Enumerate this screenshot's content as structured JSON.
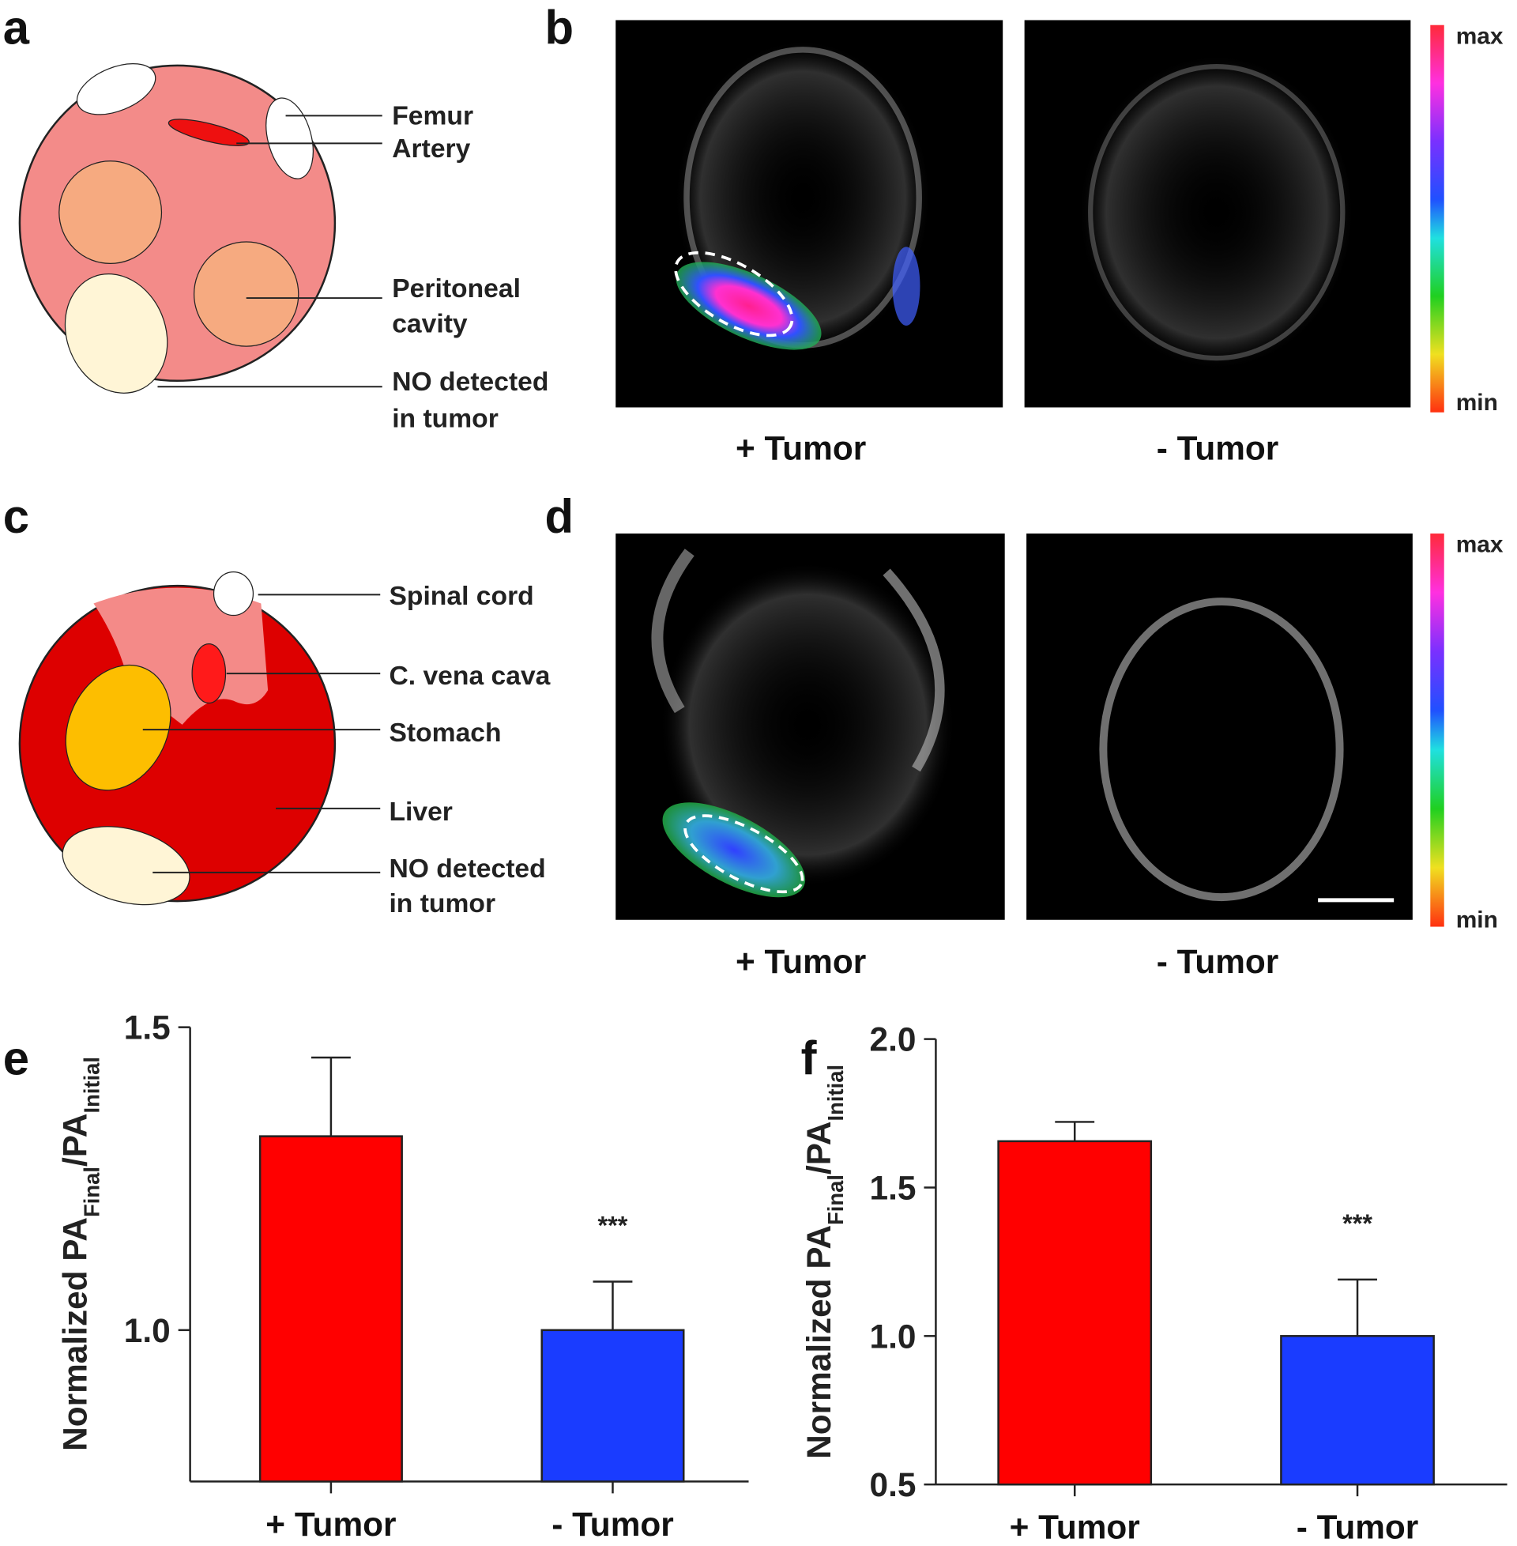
{
  "panel_labels": [
    "a",
    "b",
    "c",
    "d",
    "e",
    "f"
  ],
  "schematic_a": {
    "labels": [
      [
        "Femur"
      ],
      [
        "Artery"
      ],
      [
        "Peritoneal",
        "cavity"
      ],
      [
        "NO detected",
        "in tumor"
      ]
    ]
  },
  "image_b": {
    "captions": [
      "+ Tumor",
      "- Tumor"
    ],
    "colorbar": {
      "max": "max",
      "min": "min"
    }
  },
  "schematic_c": {
    "labels": [
      [
        "Spinal cord"
      ],
      [
        "C. vena cava"
      ],
      [
        "Stomach"
      ],
      [
        "Liver"
      ],
      [
        "NO detected",
        "in tumor"
      ]
    ]
  },
  "image_d": {
    "captions": [
      "+ Tumor",
      "- Tumor"
    ],
    "colorbar": {
      "max": "max",
      "min": "min"
    }
  },
  "chart_data": [
    {
      "type": "bar",
      "ylabel": {
        "main": "Normalized PA",
        "sub1": "Final",
        "mid": "/PA",
        "sub2": "Initial"
      },
      "categories": [
        "+ Tumor",
        "- Tumor"
      ],
      "values": [
        1.32,
        1.0
      ],
      "errors": [
        0.13,
        0.08
      ],
      "colors": [
        "#ff0000",
        "#1a3cff"
      ],
      "significance": [
        null,
        "***"
      ],
      "ylim": [
        0.75,
        1.5
      ],
      "yticks": [
        {
          "value": 1,
          "label": "1.0"
        },
        1.5
      ]
    },
    {
      "type": "bar",
      "ylabel": {
        "main": "Normalized PA",
        "sub1": "Final",
        "mid": "/PA",
        "sub2": "Initial"
      },
      "categories": [
        "+ Tumor",
        "- Tumor"
      ],
      "values": [
        1.656,
        1.0
      ],
      "errors": [
        0.065,
        0.19
      ],
      "colors": [
        "#ff0000",
        "#1a3cff"
      ],
      "significance": [
        null,
        "***"
      ],
      "ylim": [
        0.5,
        2.0
      ],
      "yticks": [
        {
          "value": 0.5,
          "label": "0.5"
        },
        {
          "value": 1,
          "label": "1.0"
        },
        1.5,
        {
          "value": 2,
          "label": "2.0"
        }
      ]
    }
  ]
}
